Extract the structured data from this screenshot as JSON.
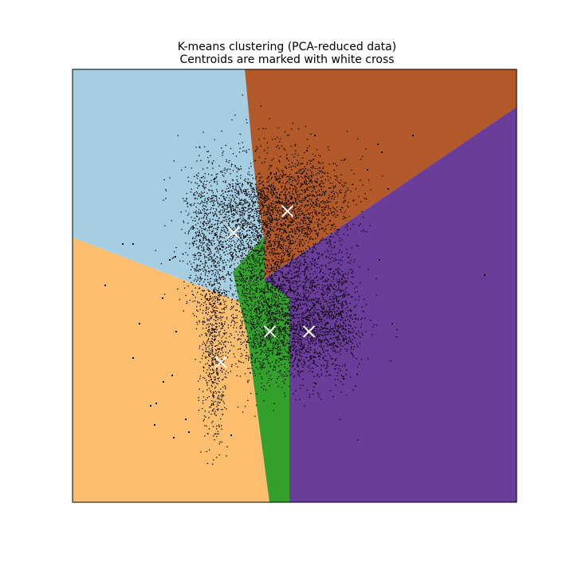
{
  "chart_data": {
    "type": "scatter",
    "title": "K-means clustering (PCA-reduced data)",
    "subtitle": "Centroids are marked with white cross",
    "xlabel": "",
    "ylabel": "",
    "axis_ticks_visible": false,
    "grid": false,
    "legend": "none",
    "xlim": [
      -1,
      1
    ],
    "ylim": [
      -1,
      1
    ],
    "background": "decision regions of 5 clusters",
    "region_colors": [
      "#a6cee3",
      "#b15928",
      "#fdbf6f",
      "#33a02c",
      "#6a3d9a"
    ],
    "point_color": "#000000",
    "centroid_marker": "white x",
    "centroids": [
      {
        "x": -0.275,
        "y": 0.246
      },
      {
        "x": -0.032,
        "y": 0.345
      },
      {
        "x": -0.332,
        "y": -0.353
      },
      {
        "x": -0.111,
        "y": -0.211
      },
      {
        "x": 0.065,
        "y": -0.211
      }
    ]
  }
}
